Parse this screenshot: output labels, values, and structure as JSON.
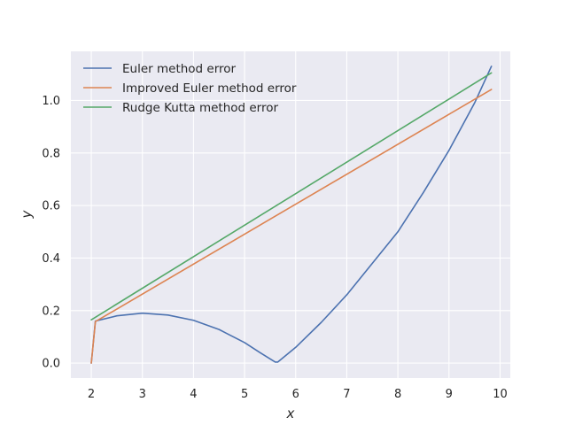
{
  "chart_data": {
    "type": "line",
    "xlabel": "x",
    "ylabel": "y",
    "xlim": [
      1.6,
      10.2
    ],
    "ylim": [
      -0.057,
      1.187
    ],
    "xticks": [
      2,
      3,
      4,
      5,
      6,
      7,
      8,
      9,
      10
    ],
    "yticks": [
      0.0,
      0.2,
      0.4,
      0.6,
      0.8,
      1.0
    ],
    "ytick_labels": [
      "0.0",
      "0.2",
      "0.4",
      "0.6",
      "0.8",
      "1.0"
    ],
    "grid": true,
    "legend_position": "top-left",
    "background": "#EAEAF2",
    "series": [
      {
        "name": "Euler method error",
        "color": "#4C72B0",
        "x": [
          2.0,
          2.08,
          2.5,
          3.0,
          3.5,
          4.0,
          4.5,
          5.0,
          5.3,
          5.6,
          5.65,
          5.7,
          6.0,
          6.5,
          7.0,
          7.5,
          8.0,
          8.5,
          9.0,
          9.5,
          9.83
        ],
        "y": [
          0.0,
          0.16,
          0.18,
          0.19,
          0.183,
          0.163,
          0.128,
          0.078,
          0.04,
          0.004,
          0.004,
          0.012,
          0.06,
          0.155,
          0.26,
          0.38,
          0.5,
          0.65,
          0.81,
          0.99,
          1.13
        ]
      },
      {
        "name": "Improved Euler method error",
        "color": "#DD8452",
        "x": [
          2.0,
          2.08,
          9.83
        ],
        "y": [
          0.0,
          0.158,
          1.042
        ]
      },
      {
        "name": "Rudge Kutta method error",
        "color": "#55A868",
        "x": [
          2.0,
          9.83
        ],
        "y": [
          0.165,
          1.105
        ]
      }
    ]
  }
}
